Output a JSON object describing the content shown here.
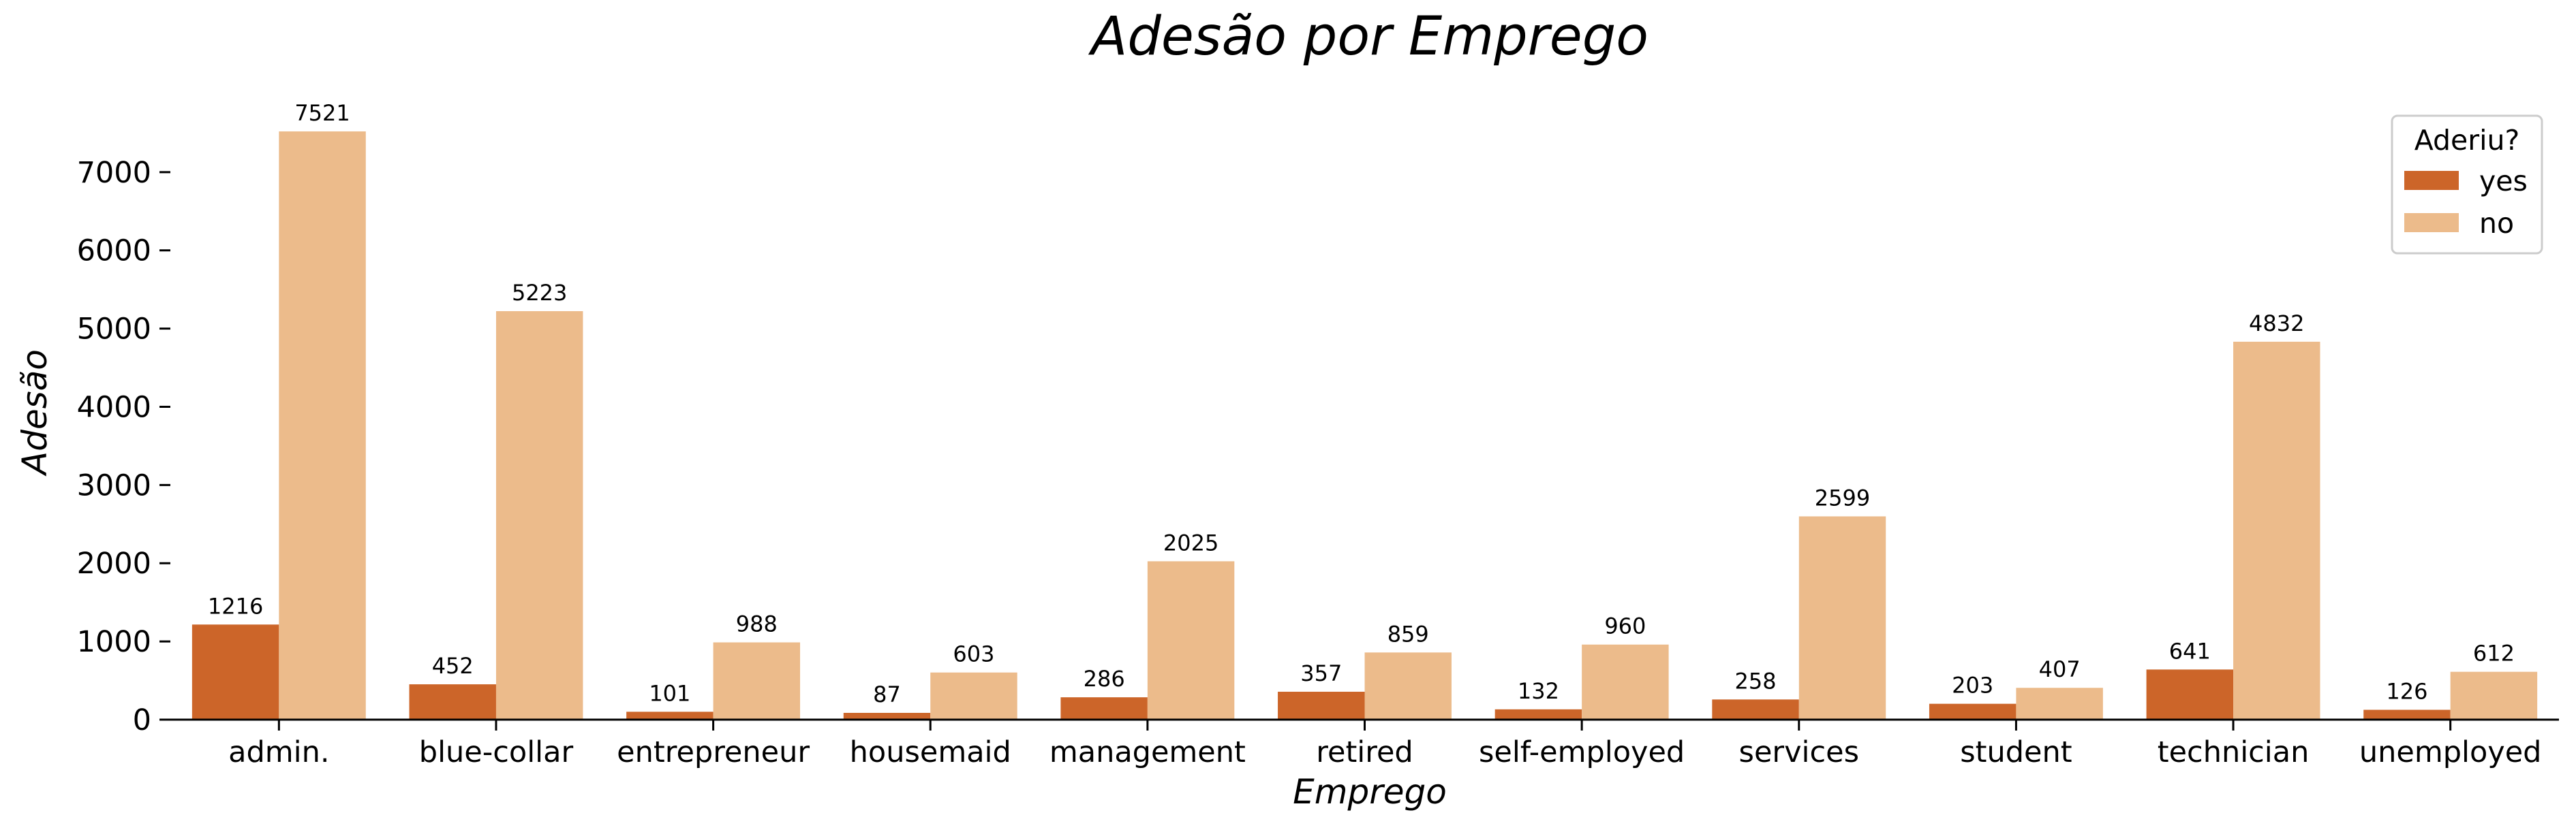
{
  "chart_data": {
    "type": "bar",
    "title": "Adesão por Emprego",
    "xlabel": "Emprego",
    "ylabel": "Adesão",
    "categories": [
      "admin.",
      "blue-collar",
      "entrepreneur",
      "housemaid",
      "management",
      "retired",
      "self-employed",
      "services",
      "student",
      "technician",
      "unemployed"
    ],
    "series": [
      {
        "name": "yes",
        "color": "#cc6529",
        "values": [
          1216,
          452,
          101,
          87,
          286,
          357,
          132,
          258,
          203,
          641,
          126
        ]
      },
      {
        "name": "no",
        "color": "#ecbb8b",
        "values": [
          7521,
          5223,
          988,
          603,
          2025,
          859,
          960,
          2599,
          407,
          4832,
          612
        ]
      }
    ],
    "ylim": [
      0,
      7521
    ],
    "yticks": [
      0,
      1000,
      2000,
      3000,
      4000,
      5000,
      6000,
      7000
    ],
    "grid": false,
    "legend": {
      "title": "Aderiu?",
      "placement": "top-right"
    }
  }
}
